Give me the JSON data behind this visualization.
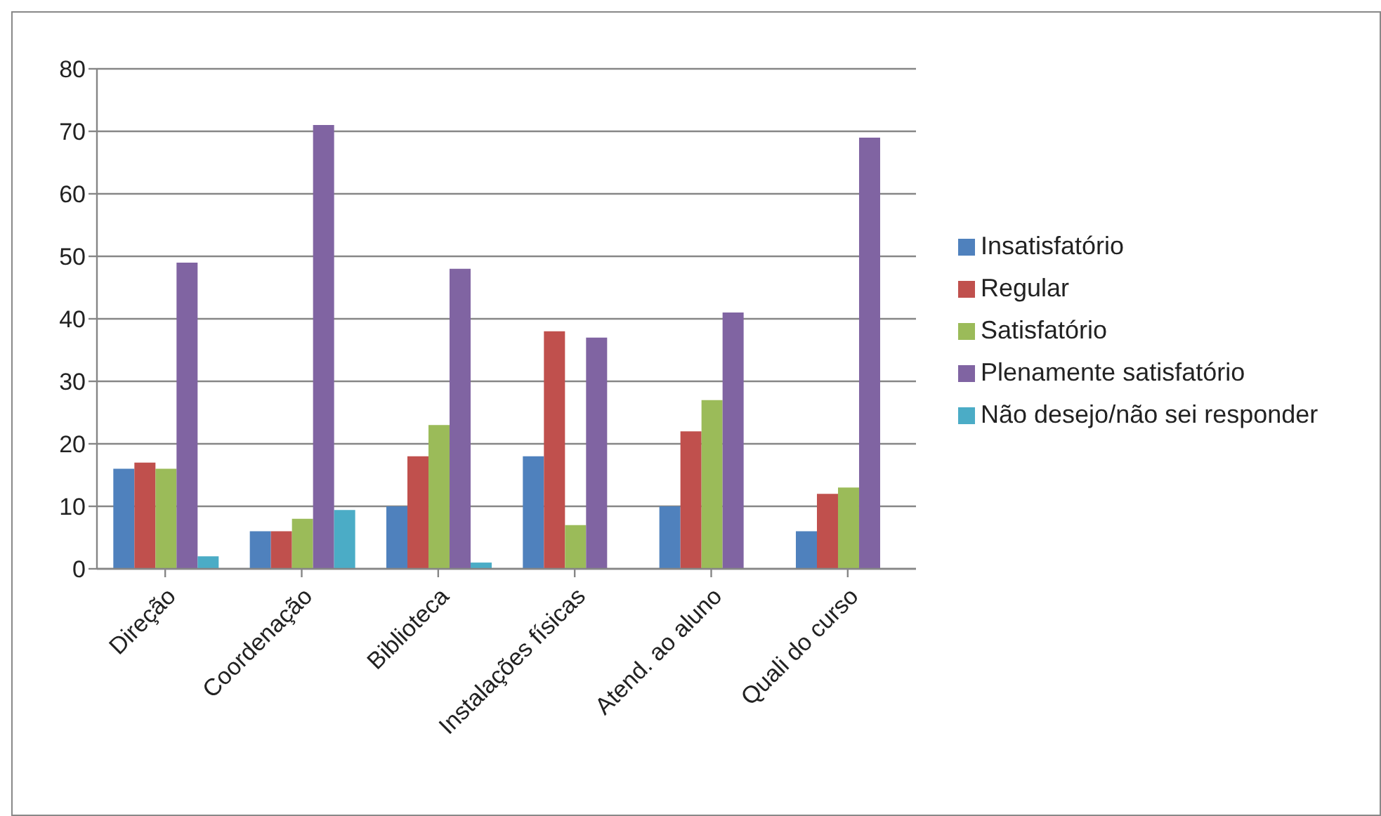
{
  "chart_data": {
    "type": "bar",
    "categories": [
      "Direção",
      "Coordenação",
      "Biblioteca",
      "Instalações físicas",
      "Atend. ao aluno",
      "Quali do curso"
    ],
    "series": [
      {
        "name": "Insatisfatório",
        "color": "#4f81bd",
        "values": [
          16,
          6,
          10,
          18,
          10,
          6
        ]
      },
      {
        "name": "Regular",
        "color": "#c0504d",
        "values": [
          17,
          6,
          18,
          38,
          22,
          12
        ]
      },
      {
        "name": "Satisfatório",
        "color": "#9bbb59",
        "values": [
          16,
          8,
          23,
          7,
          27,
          13
        ]
      },
      {
        "name": "Plenamente satisfatório",
        "color": "#8064a2",
        "values": [
          49,
          71,
          48,
          37,
          41,
          69
        ]
      },
      {
        "name": "Não desejo/não sei responder",
        "color": "#4bacc6",
        "values": [
          2,
          9.4,
          1,
          null,
          null,
          null
        ]
      }
    ],
    "ylim": [
      0,
      80
    ],
    "yticks": [
      0,
      10,
      20,
      30,
      40,
      50,
      60,
      70,
      80
    ],
    "grid": "y",
    "legend": "right"
  }
}
